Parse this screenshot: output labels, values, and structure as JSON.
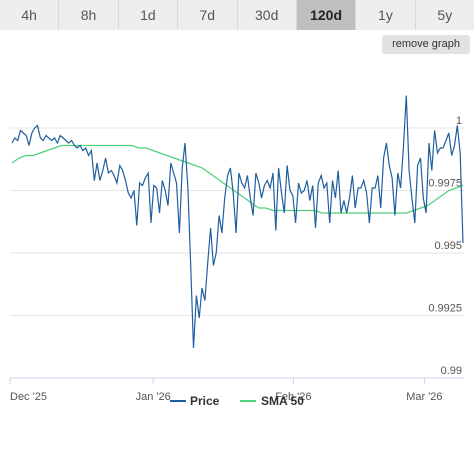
{
  "tabs": [
    {
      "label": "4h",
      "active": false
    },
    {
      "label": "8h",
      "active": false
    },
    {
      "label": "1d",
      "active": false
    },
    {
      "label": "7d",
      "active": false
    },
    {
      "label": "30d",
      "active": false
    },
    {
      "label": "120d",
      "active": true
    },
    {
      "label": "1y",
      "active": false
    },
    {
      "label": "5y",
      "active": false
    }
  ],
  "remove_graph_label": "remove graph",
  "chart_data": {
    "type": "line",
    "x_tick_labels": [
      "Dec '25",
      "Jan '26",
      "Feb '26",
      "Mar '26"
    ],
    "y_tick_labels": [
      "1",
      "0.9975",
      "0.995",
      "0.9925",
      "0.99"
    ],
    "y_ticks": [
      1.0,
      0.9975,
      0.995,
      0.9925,
      0.99
    ],
    "ylim": [
      0.99,
      1.0026
    ],
    "x_month_index": [
      0,
      4.7,
      9.3,
      13.6
    ],
    "grid": true,
    "legend_position": "bottom",
    "colors": {
      "price": "#1f5f9e",
      "sma": "#4fd07a",
      "grid": "#e6e6e6"
    },
    "series": [
      {
        "name": "Price",
        "values": [
          0.9994,
          0.9996,
          0.9995,
          0.9999,
          0.9998,
          0.9997,
          0.9993,
          0.9998,
          1.0,
          1.0001,
          0.9996,
          0.9995,
          0.9997,
          0.9996,
          0.9995,
          0.9996,
          0.9994,
          0.9997,
          0.9996,
          0.9995,
          0.9994,
          0.9995,
          0.9993,
          0.9992,
          0.9993,
          0.9991,
          0.9992,
          0.9989,
          0.9991,
          0.9979,
          0.9986,
          0.9979,
          0.9983,
          0.9988,
          0.9982,
          0.9983,
          0.9981,
          0.9978,
          0.9985,
          0.9983,
          0.9979,
          0.9974,
          0.9972,
          0.9975,
          0.9961,
          0.9978,
          0.9977,
          0.998,
          0.9982,
          0.9962,
          0.9977,
          0.9976,
          0.9966,
          0.9979,
          0.9975,
          0.9969,
          0.9986,
          0.9982,
          0.9978,
          0.9958,
          0.9984,
          0.9994,
          0.9976,
          0.9945,
          0.9912,
          0.9933,
          0.9924,
          0.9936,
          0.9931,
          0.9946,
          0.996,
          0.9945,
          0.995,
          0.9965,
          0.9958,
          0.9972,
          0.9981,
          0.9984,
          0.9974,
          0.9958,
          0.9982,
          0.9978,
          0.9976,
          0.9981,
          0.9972,
          0.9965,
          0.9982,
          0.9978,
          0.9972,
          0.9977,
          0.9979,
          0.9976,
          0.9982,
          0.9959,
          0.9984,
          0.9974,
          0.9966,
          0.9985,
          0.9975,
          0.9973,
          0.9962,
          0.9978,
          0.9974,
          0.9975,
          0.9979,
          0.9971,
          0.9977,
          0.996,
          0.9978,
          0.9981,
          0.9976,
          0.9978,
          0.9962,
          0.9979,
          0.9972,
          0.9983,
          0.9966,
          0.9971,
          0.9966,
          0.9972,
          0.9981,
          0.9968,
          0.9976,
          0.9976,
          0.9979,
          0.9974,
          0.9962,
          0.9976,
          0.9976,
          0.9981,
          0.9968,
          0.9988,
          0.9994,
          0.9985,
          0.998,
          0.9965,
          0.9982,
          0.9976,
          0.9992,
          1.0013,
          0.9983,
          0.9972,
          0.9962,
          0.9985,
          0.9988,
          0.9972,
          0.9966,
          0.9994,
          0.9983,
          0.9999,
          0.999,
          0.9992,
          0.9992,
          0.9995,
          0.9998,
          0.9989,
          0.9993,
          1.0001,
          0.999,
          0.9954
        ]
      },
      {
        "name": "SMA 50",
        "values": [
          0.9986,
          0.9988,
          0.9989,
          0.9989,
          0.999,
          0.9991,
          0.9992,
          0.9993,
          0.9993,
          0.9993,
          0.9993,
          0.9993,
          0.9993,
          0.9993,
          0.9993,
          0.9993,
          0.9993,
          0.9993,
          0.9992,
          0.9992,
          0.9991,
          0.999,
          0.9989,
          0.9988,
          0.9987,
          0.9986,
          0.9985,
          0.9984,
          0.9982,
          0.998,
          0.9978,
          0.9976,
          0.9974,
          0.9972,
          0.997,
          0.9968,
          0.9968,
          0.9967,
          0.9967,
          0.9967,
          0.9967,
          0.9967,
          0.9967,
          0.9967,
          0.9966,
          0.9966,
          0.9966,
          0.9966,
          0.9966,
          0.9966,
          0.9966,
          0.9966,
          0.9966,
          0.9966,
          0.9966,
          0.9966,
          0.9966,
          0.9967,
          0.9968,
          0.9969,
          0.9971,
          0.9973,
          0.9975,
          0.9976,
          0.9977
        ]
      }
    ]
  }
}
